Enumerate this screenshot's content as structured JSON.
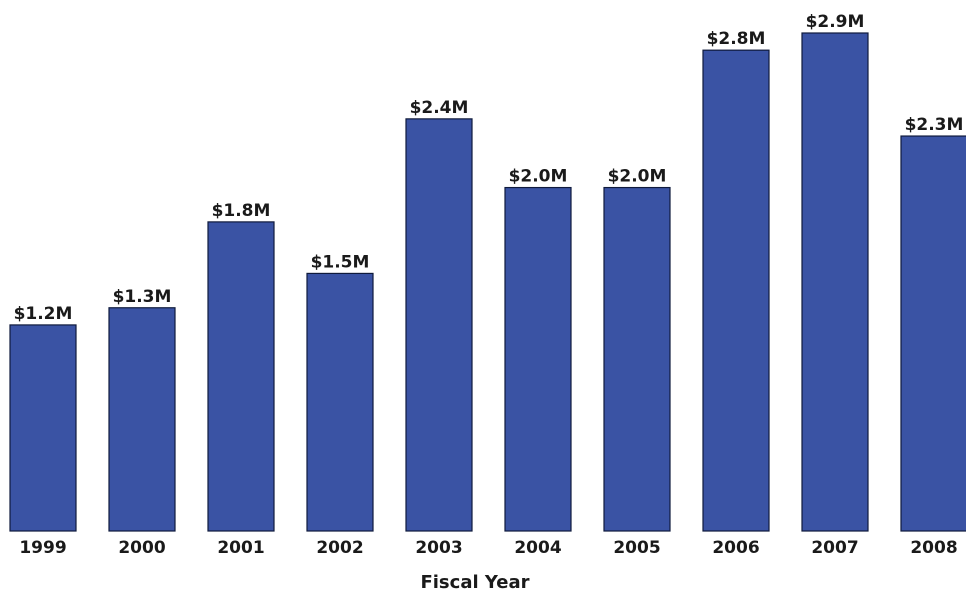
{
  "chart_data": {
    "type": "bar",
    "title": "",
    "xlabel": "Fiscal Year",
    "ylabel": "",
    "categories": [
      "1999",
      "2000",
      "2001",
      "2002",
      "2003",
      "2004",
      "2005",
      "2006",
      "2007",
      "2008"
    ],
    "values": [
      1.2,
      1.3,
      1.8,
      1.5,
      2.4,
      2.0,
      2.0,
      2.8,
      2.9,
      2.3
    ],
    "value_labels": [
      "$1.2M",
      "$1.3M",
      "$1.8M",
      "$1.5M",
      "$2.4M",
      "$2.0M",
      "$2.0M",
      "$2.8M",
      "$2.9M",
      "$2.3M"
    ],
    "ylim": [
      0,
      2.9
    ],
    "grid": false,
    "legend": "none",
    "colors": {
      "bar_fill": "#3a53a4",
      "bar_stroke": "#0f1a3c"
    }
  }
}
